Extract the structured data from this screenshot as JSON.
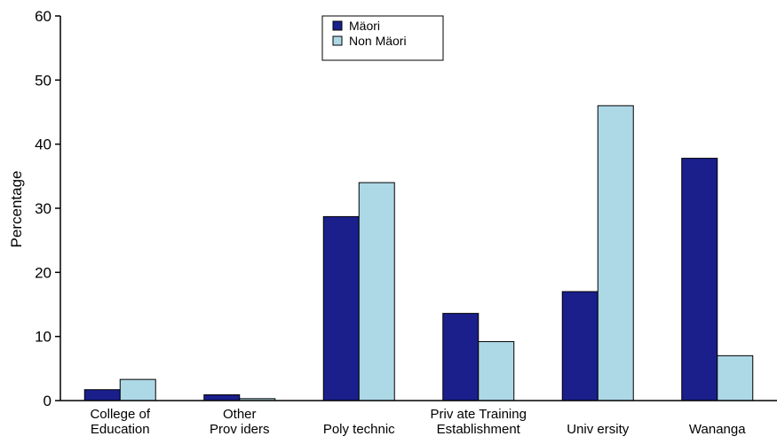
{
  "chart_data": {
    "type": "bar",
    "title": "",
    "xlabel": "",
    "ylabel": "Percentage",
    "ylim": [
      0,
      60
    ],
    "yticks": [
      "0",
      "10",
      "20",
      "30",
      "40",
      "50",
      "60"
    ],
    "categories": [
      [
        "College of",
        "Education"
      ],
      [
        "Other",
        "Prov iders"
      ],
      [
        "Poly technic"
      ],
      [
        "Priv ate Training",
        "Establishment"
      ],
      [
        "Univ ersity"
      ],
      [
        "Wananga"
      ]
    ],
    "series": [
      {
        "name": "Mäori",
        "color": "#1a1f8c",
        "values": [
          1.7,
          0.9,
          28.7,
          13.6,
          17.0,
          37.8
        ]
      },
      {
        "name": "Non Mäori",
        "color": "#add8e6",
        "values": [
          3.3,
          0.3,
          34.0,
          9.2,
          46.0,
          7.0
        ]
      }
    ],
    "grid": false,
    "legend": "top-center"
  }
}
